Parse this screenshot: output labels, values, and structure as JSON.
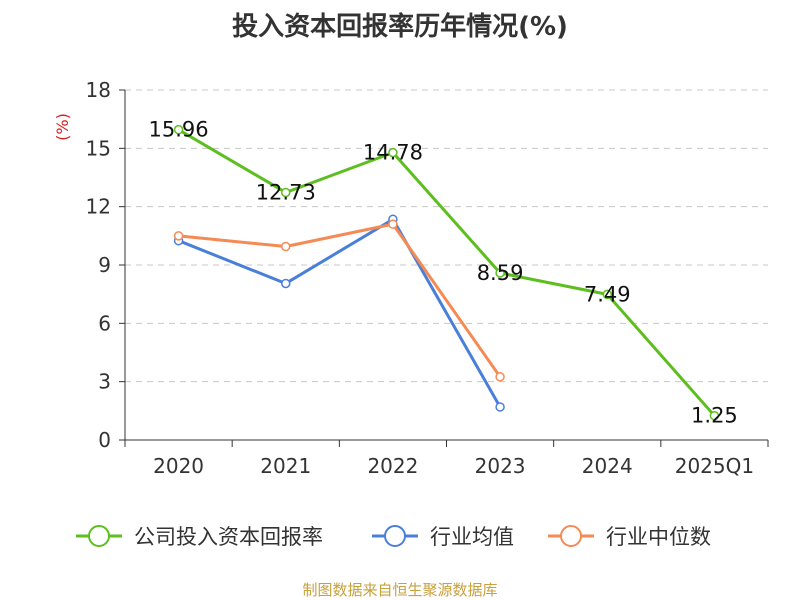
{
  "chart_data": {
    "type": "line",
    "title": "投入资本回报率历年情况(%)",
    "ylabel": "(%)",
    "categories": [
      "2020",
      "2021",
      "2022",
      "2023",
      "2024",
      "2025Q1"
    ],
    "ylim": [
      0,
      18
    ],
    "yticks": [
      0,
      3,
      6,
      9,
      12,
      15,
      18
    ],
    "grid": true,
    "legend_position": "bottom",
    "series": [
      {
        "name": "公司投入资本回报率",
        "color": "#5dbe1f",
        "values": [
          15.96,
          12.73,
          14.78,
          8.59,
          7.49,
          1.25
        ],
        "labels": [
          "15.96",
          "12.73",
          "14.78",
          "8.59",
          "7.49",
          "1.25"
        ]
      },
      {
        "name": "行业均值",
        "color": "#4a7fd9",
        "values": [
          10.25,
          8.05,
          11.35,
          1.7,
          null,
          null
        ]
      },
      {
        "name": "行业中位数",
        "color": "#f58a55",
        "values": [
          10.5,
          9.95,
          11.1,
          3.25,
          null,
          null
        ]
      }
    ],
    "source": "制图数据来自恒生聚源数据库"
  }
}
